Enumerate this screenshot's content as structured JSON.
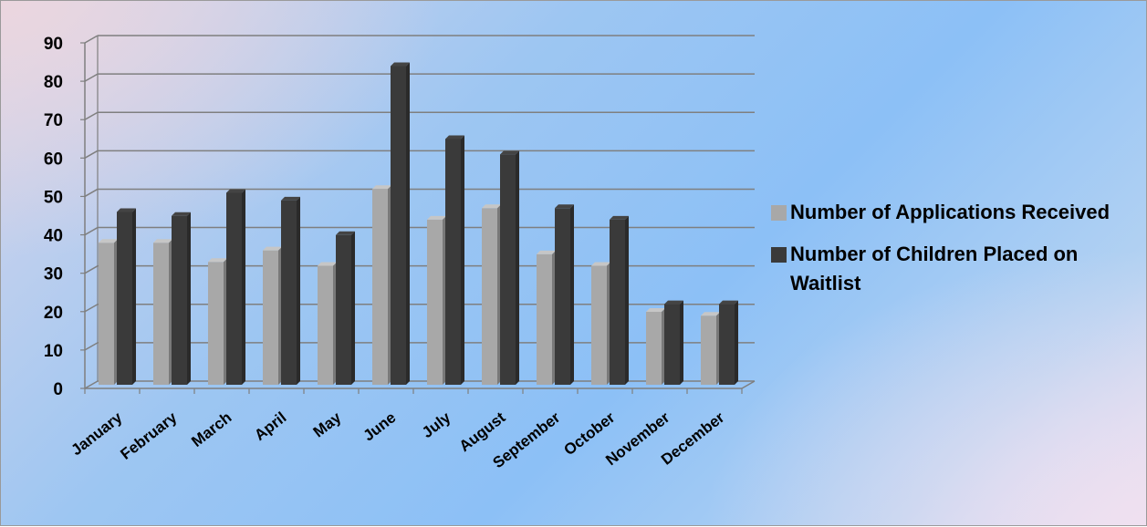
{
  "chart_data": {
    "type": "bar",
    "title": "",
    "xlabel": "",
    "ylabel": "",
    "ylim": [
      0,
      90
    ],
    "y_ticks": [
      "0",
      "10",
      "20",
      "30",
      "40",
      "50",
      "60",
      "70",
      "80",
      "90"
    ],
    "grid": "horizontal",
    "legend_position": "right",
    "categories": [
      "January",
      "February",
      "March",
      "April",
      "May",
      "June",
      "July",
      "August",
      "September",
      "October",
      "November",
      "December"
    ],
    "series": [
      {
        "name": "Number of Applications Received",
        "color": "#a8a8a8",
        "values": [
          37,
          37,
          32,
          35,
          31,
          51,
          43,
          46,
          34,
          31,
          19,
          18
        ]
      },
      {
        "name": "Number of Children Placed on Waitlist",
        "color": "#3a3a3a",
        "values": [
          45,
          44,
          50,
          48,
          39,
          83,
          64,
          60,
          46,
          43,
          21,
          21
        ]
      }
    ]
  }
}
